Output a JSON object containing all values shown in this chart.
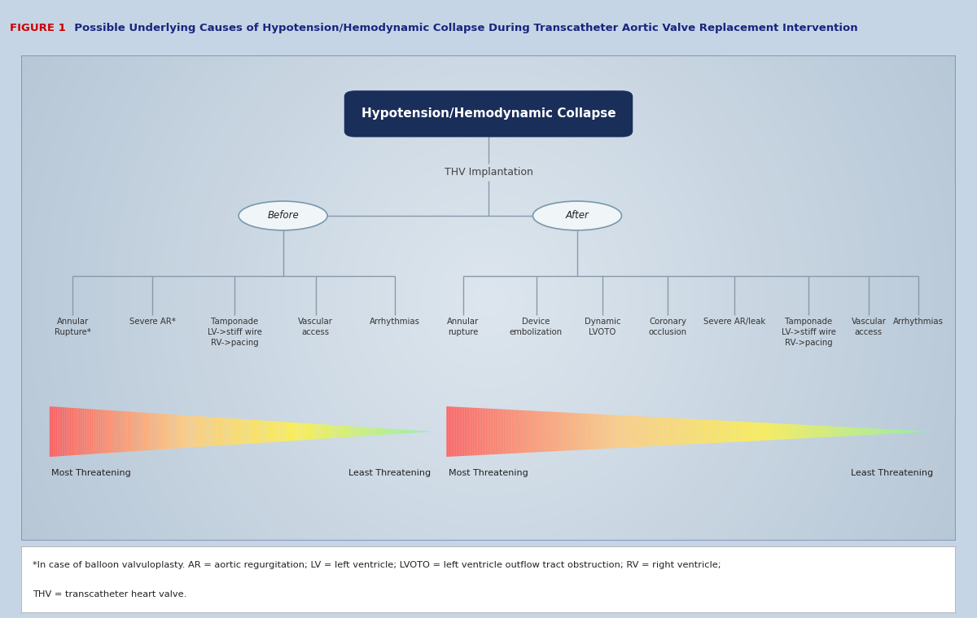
{
  "title_fig1": "FIGURE 1",
  "title_main": "  Possible Underlying Causes of Hypotension/Hemodynamic Collapse During Transcatheter Aortic Valve Replacement Intervention",
  "top_box_text": "Hypotension/Hemodynamic Collapse",
  "thv_text": "THV Implantation",
  "before_text": "Before",
  "after_text": "After",
  "before_leaves": [
    "Annular\nRupture*",
    "Severe AR*",
    "Tamponade\nLV->stiff wire\nRV->pacing",
    "Vascular\naccess",
    "Arrhythmias"
  ],
  "after_leaves": [
    "Annular\nrupture",
    "Device\nembolization",
    "Dynamic\nLVOTO",
    "Coronary\nocclusion",
    "Severe AR/leak",
    "Tamponade\nLV->stiff wire\nRV->pacing",
    "Vascular\naccess",
    "Arrhythmias"
  ],
  "most_threatening": "Most Threatening",
  "least_threatening": "Least Threatening",
  "footnote_line1": "*In case of balloon valvuloplasty. AR = aortic regurgitation; LV = left ventricle; LVOTO = left ventricle outflow tract obstruction; RV = right ventricle;",
  "footnote_line2": "THV = transcatheter heart valve.",
  "bg_outer": "#c5d5e5",
  "bg_inner_edge": "#c0ccd8",
  "bg_inner_center": "#e0e8f0",
  "fig_title_red": "#cc0000",
  "fig_title_blue": "#1a237e",
  "top_box_bg": "#1a2e5a",
  "top_box_fg": "#ffffff",
  "line_color": "#8899aa",
  "leaf_text_color": "#333333",
  "footnote_bg": "#ffffff"
}
